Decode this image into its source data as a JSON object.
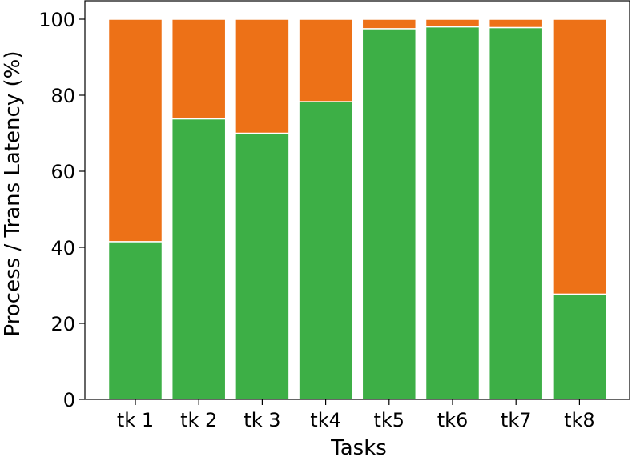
{
  "chart_data": {
    "type": "bar",
    "stacked": true,
    "categories": [
      "tk 1",
      "tk 2",
      "tk 3",
      "tk4",
      "tk5",
      "tk6",
      "tk7",
      "tk8"
    ],
    "series": [
      {
        "color": "#3daf46",
        "values": [
          41.5,
          73.8,
          70.0,
          78.3,
          97.5,
          98.0,
          97.8,
          27.7
        ]
      },
      {
        "color": "#ed7117",
        "values": [
          58.5,
          26.2,
          30.0,
          21.7,
          2.5,
          2.0,
          2.2,
          72.3
        ]
      }
    ],
    "xlabel": "Tasks",
    "ylabel": "Process / Trans Latency (%)",
    "ylim": [
      0,
      100
    ],
    "yticks": [
      0,
      20,
      40,
      60,
      80,
      100
    ],
    "grid": false
  }
}
